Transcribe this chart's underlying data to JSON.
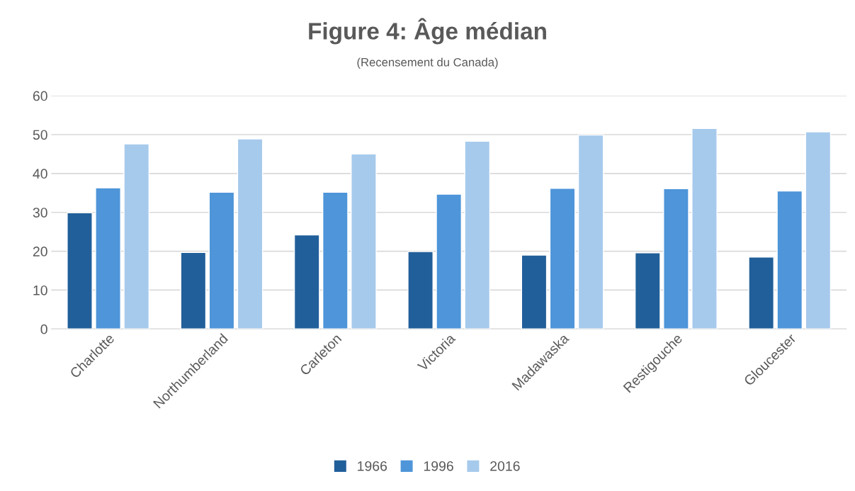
{
  "chart_data": {
    "type": "bar",
    "title": "Figure 4: Âge médian",
    "subtitle": "(Recensement du Canada)",
    "categories": [
      "Charlotte",
      "Northumberland",
      "Carleton",
      "Victoria",
      "Madawaska",
      "Restigouche",
      "Gloucester"
    ],
    "series": [
      {
        "name": "1966",
        "color": "#215f9a",
        "values": [
          29.9,
          19.7,
          24.2,
          19.9,
          19.0,
          19.6,
          18.5
        ]
      },
      {
        "name": "1996",
        "color": "#4e95d9",
        "values": [
          36.3,
          35.2,
          35.2,
          34.7,
          36.2,
          36.1,
          35.5
        ]
      },
      {
        "name": "2016",
        "color": "#a6caec",
        "values": [
          47.6,
          48.9,
          45.0,
          48.3,
          49.9,
          51.6,
          50.7
        ]
      }
    ],
    "ylim": [
      0,
      60
    ],
    "yticks": [
      0,
      10,
      20,
      30,
      40,
      50,
      60
    ],
    "grid": "y",
    "legend": "bottom"
  }
}
